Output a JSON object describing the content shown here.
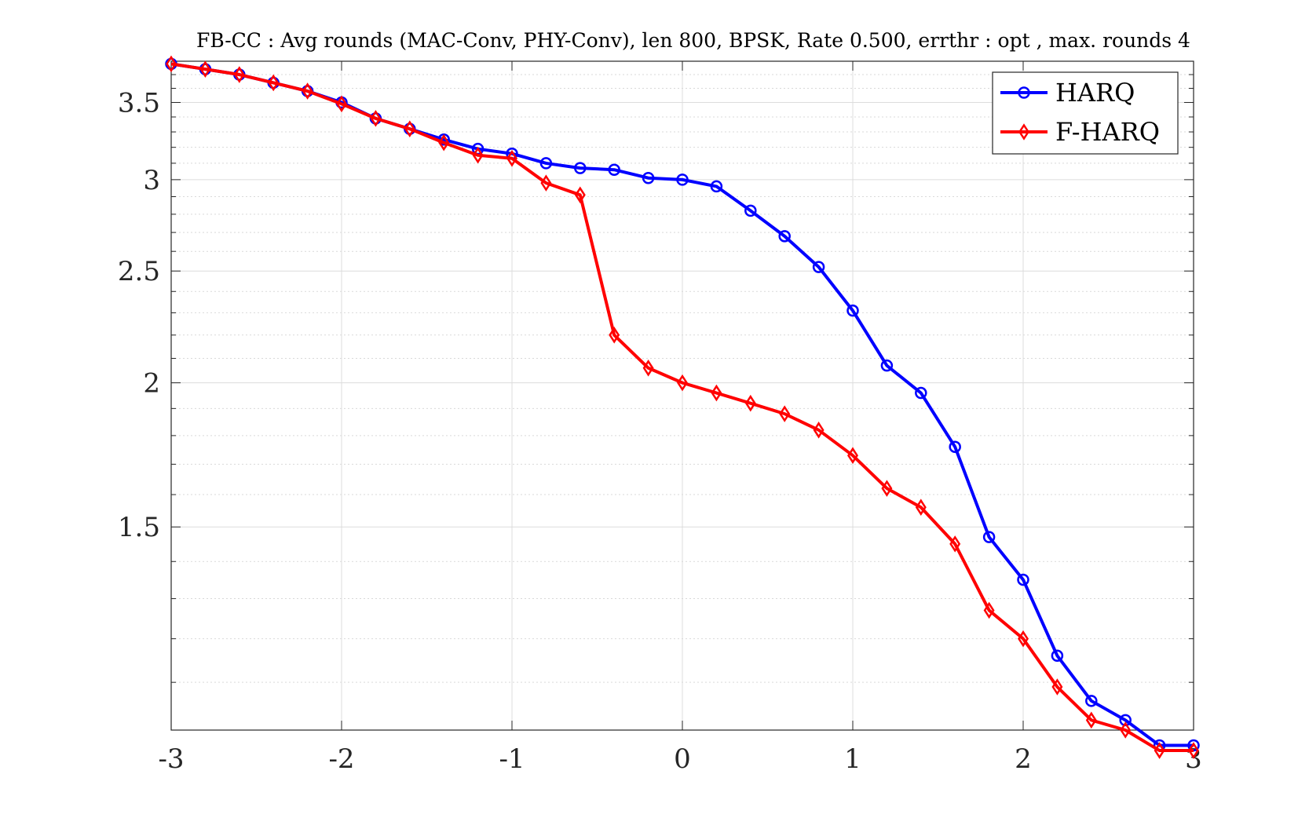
{
  "chart_data": {
    "type": "line",
    "title": "FB-CC : Avg rounds (MAC-Conv, PHY-Conv), len 800, BPSK, Rate 0.500, errthr : opt , max. rounds 4",
    "xlabel": "",
    "ylabel": "",
    "x": [
      -3,
      -2.8,
      -2.6,
      -2.4,
      -2.2,
      -2,
      -1.8,
      -1.6,
      -1.4,
      -1.2,
      -1,
      -0.8,
      -0.6,
      -0.4,
      -0.2,
      0,
      0.2,
      0.4,
      0.6,
      0.8,
      1,
      1.2,
      1.4,
      1.6,
      1.8,
      2,
      2.2,
      2.4,
      2.6,
      2.8,
      3
    ],
    "xlim": [
      -3,
      3
    ],
    "ylim": [
      1.0,
      3.8
    ],
    "yscale": "log",
    "xticks": [
      -3,
      -2,
      -1,
      0,
      1,
      2,
      3
    ],
    "xtick_labels": [
      "-3",
      "-2",
      "-1",
      "0",
      "1",
      "2",
      "3"
    ],
    "yticks": [
      1.5,
      2,
      2.5,
      3,
      3.5
    ],
    "ytick_labels": [
      "1.5",
      "2",
      "2.5",
      "3",
      "3.5"
    ],
    "grid": true,
    "legend_position": "top-right",
    "series": [
      {
        "name": "HARQ",
        "color": "#0000ff",
        "marker": "circle",
        "values": [
          3.78,
          3.74,
          3.7,
          3.64,
          3.58,
          3.5,
          3.39,
          3.32,
          3.25,
          3.19,
          3.16,
          3.1,
          3.07,
          3.06,
          3.01,
          3.0,
          2.96,
          2.82,
          2.68,
          2.52,
          2.31,
          2.07,
          1.96,
          1.76,
          1.47,
          1.35,
          1.16,
          1.06,
          1.02,
          0.97,
          0.97
        ]
      },
      {
        "name": "F-HARQ",
        "color": "#ff0000",
        "marker": "diamond",
        "values": [
          3.78,
          3.74,
          3.7,
          3.64,
          3.58,
          3.49,
          3.39,
          3.32,
          3.23,
          3.15,
          3.13,
          2.98,
          2.91,
          2.2,
          2.06,
          2.0,
          1.96,
          1.92,
          1.88,
          1.82,
          1.73,
          1.62,
          1.56,
          1.45,
          1.27,
          1.2,
          1.09,
          1.02,
          1.0,
          0.96,
          0.96
        ]
      }
    ]
  }
}
